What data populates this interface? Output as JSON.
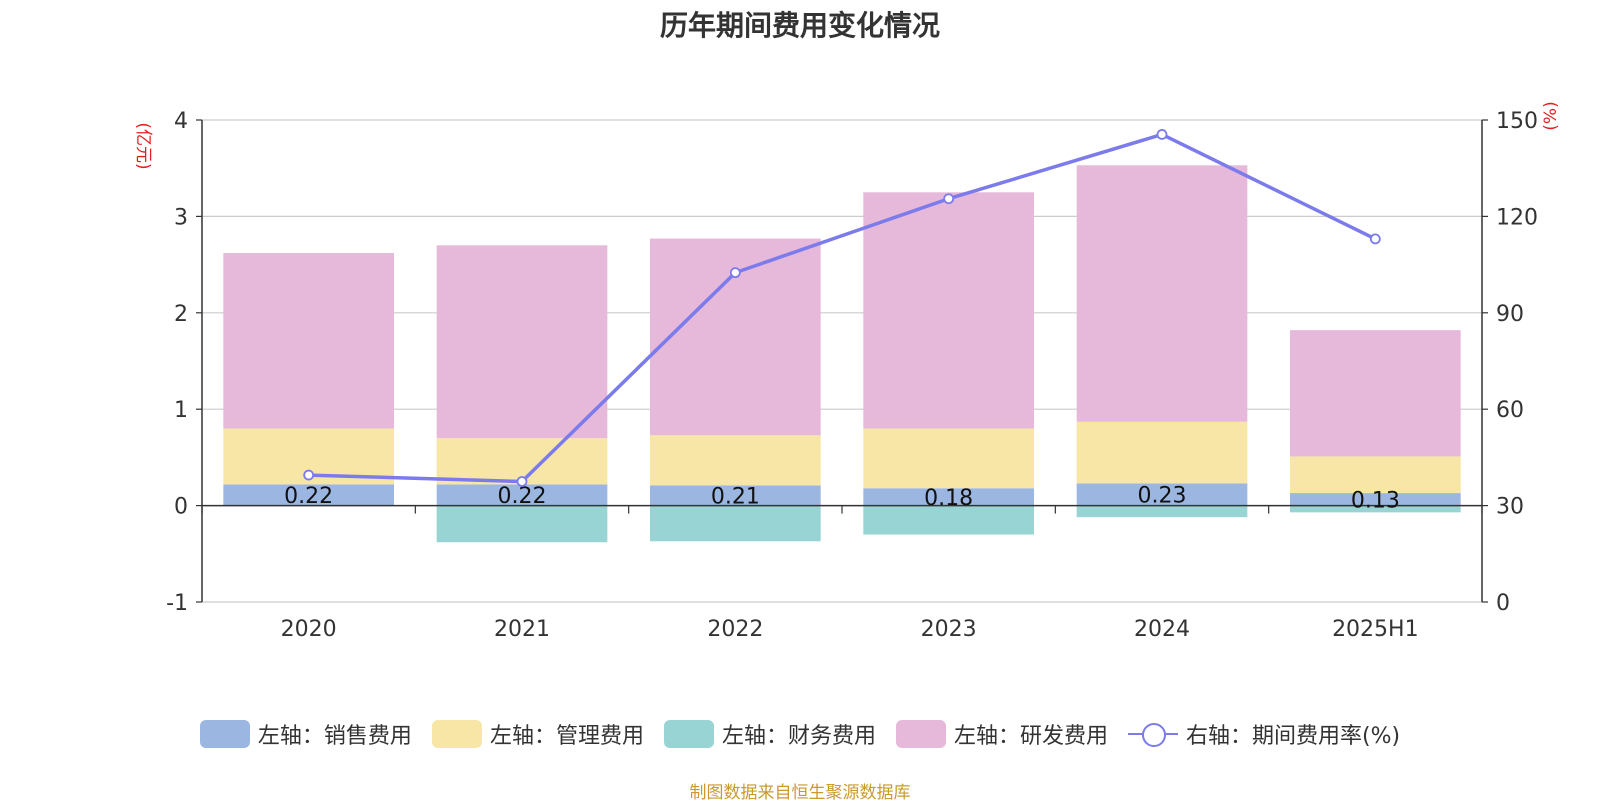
{
  "chart_data": {
    "type": "bar",
    "title": "历年期间费用变化情况",
    "categories": [
      "2020",
      "2021",
      "2022",
      "2023",
      "2024",
      "2025H1"
    ],
    "y_left": {
      "unit_label": "(亿元)",
      "ylim": [
        -1,
        4
      ],
      "ticks": [
        -1,
        0,
        1,
        2,
        3,
        4
      ]
    },
    "y_right": {
      "unit_label": "(%)",
      "ylim": [
        0,
        150
      ],
      "ticks": [
        0,
        30,
        60,
        90,
        120,
        150
      ]
    },
    "stacked": true,
    "series": [
      {
        "name": "左轴：销售费用",
        "axis": "left",
        "color": "#9bb6e1",
        "values": [
          0.22,
          0.22,
          0.21,
          0.18,
          0.23,
          0.13
        ],
        "data_labels": [
          "0.22",
          "0.22",
          "0.21",
          "0.18",
          "0.23",
          "0.13"
        ]
      },
      {
        "name": "左轴：管理费用",
        "axis": "left",
        "color": "#f8e6a6",
        "values": [
          0.58,
          0.48,
          0.52,
          0.62,
          0.64,
          0.38
        ]
      },
      {
        "name": "左轴：财务费用",
        "axis": "left",
        "color": "#98d4d4",
        "values": [
          0.0,
          -0.38,
          -0.37,
          -0.3,
          -0.12,
          -0.07
        ]
      },
      {
        "name": "左轴：研发费用",
        "axis": "left",
        "color": "#e6b8d9",
        "values": [
          1.82,
          2.0,
          2.04,
          2.45,
          2.66,
          1.31
        ]
      },
      {
        "name": "右轴：期间费用率(%)",
        "axis": "right",
        "type": "line",
        "color": "#7b7bec",
        "values": [
          39.5,
          37.5,
          102.5,
          125.5,
          145.5,
          113.0
        ]
      }
    ],
    "grid": true,
    "legend_position": "bottom"
  },
  "source_note": "制图数据来自恒生聚源数据库"
}
